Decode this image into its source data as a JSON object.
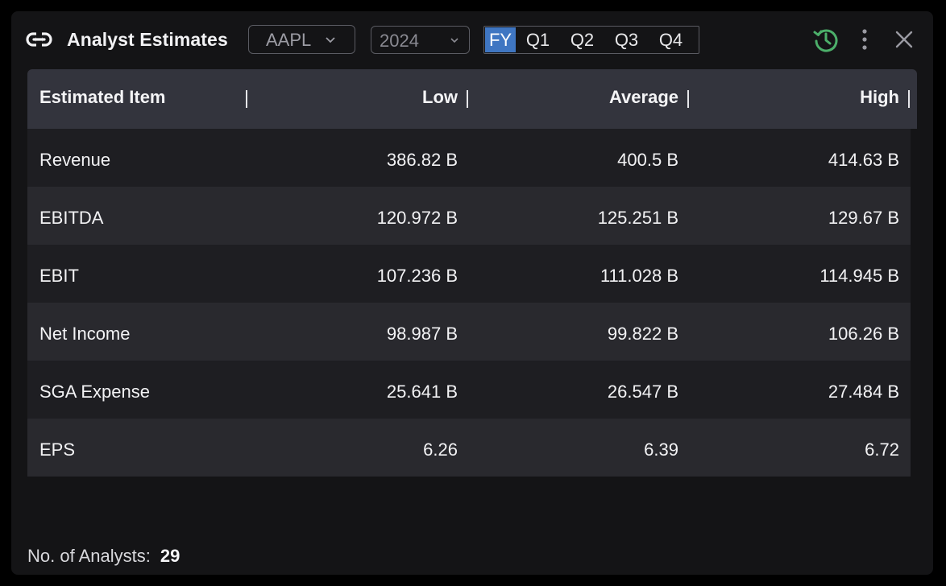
{
  "header": {
    "title": "Analyst Estimates",
    "ticker": "AAPL",
    "year": "2024",
    "periods": [
      "FY",
      "Q1",
      "Q2",
      "Q3",
      "Q4"
    ],
    "active_period": "FY",
    "icons": {
      "link": "link-icon",
      "history": "history-icon",
      "more": "more-vertical-icon",
      "close": "close-icon"
    },
    "accent_color": "#3f76c2",
    "history_color": "#4caf6a"
  },
  "table": {
    "columns": [
      "Estimated Item",
      "Low",
      "Average",
      "High"
    ],
    "rows": [
      {
        "item": "Revenue",
        "low": "386.82 B",
        "average": "400.5 B",
        "high": "414.63 B"
      },
      {
        "item": "EBITDA",
        "low": "120.972 B",
        "average": "125.251 B",
        "high": "129.67 B"
      },
      {
        "item": "EBIT",
        "low": "107.236 B",
        "average": "111.028 B",
        "high": "114.945 B"
      },
      {
        "item": "Net Income",
        "low": "98.987 B",
        "average": "99.822 B",
        "high": "106.26 B"
      },
      {
        "item": "SGA Expense",
        "low": "25.641 B",
        "average": "26.547 B",
        "high": "27.484 B"
      },
      {
        "item": "EPS",
        "low": "6.26",
        "average": "6.39",
        "high": "6.72"
      }
    ]
  },
  "footer": {
    "label": "No. of Analysts:",
    "count": "29"
  }
}
